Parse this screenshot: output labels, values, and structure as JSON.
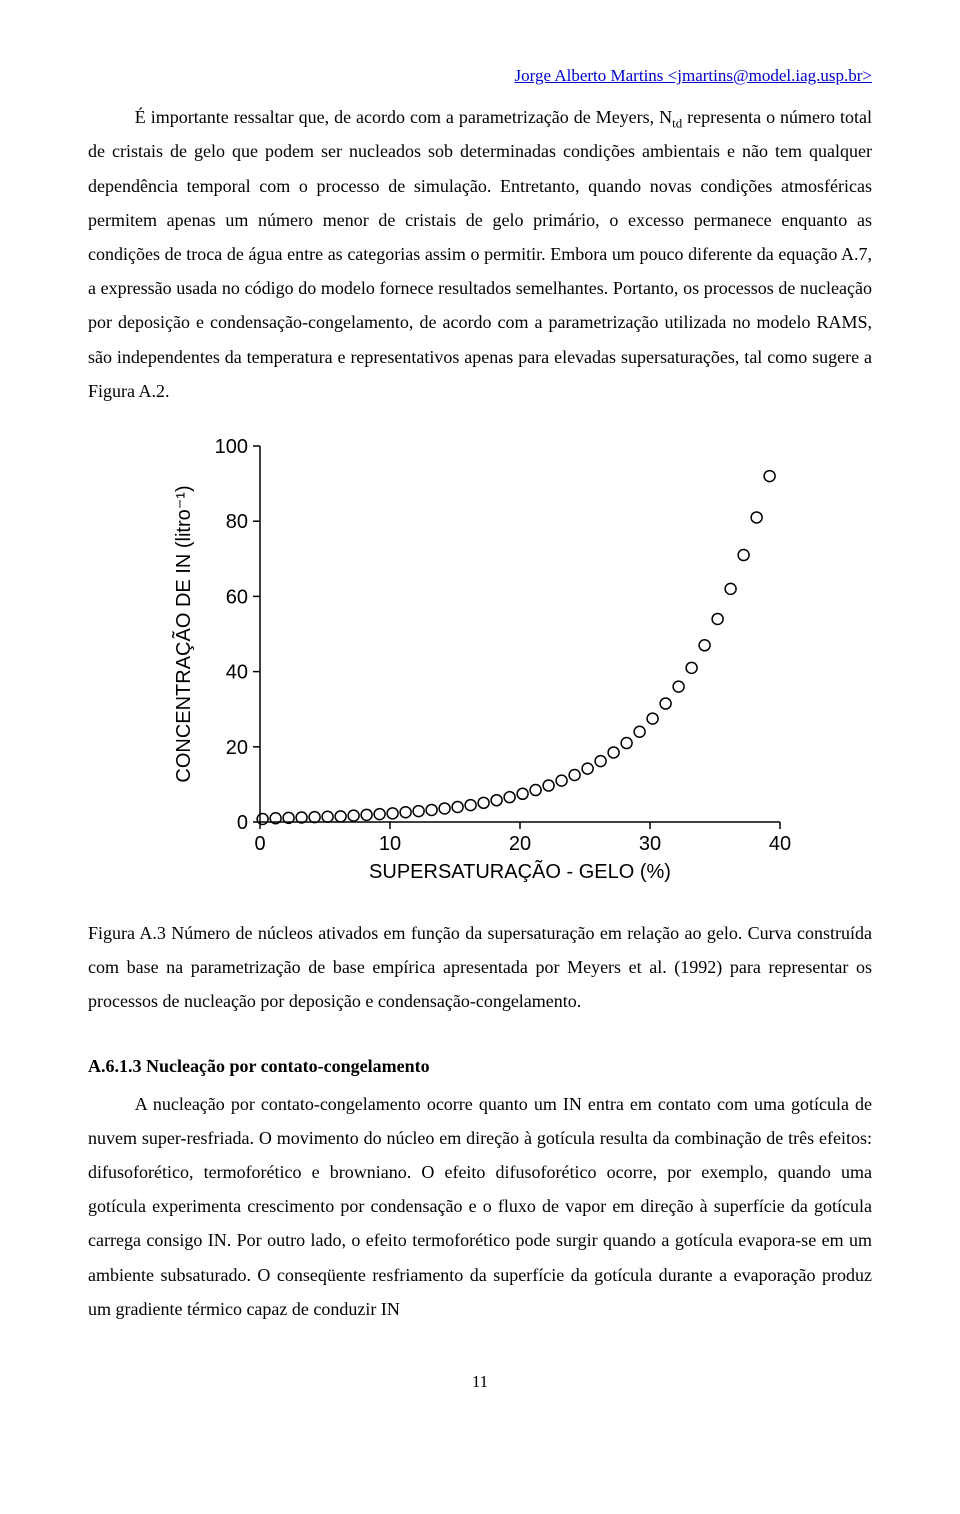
{
  "header": {
    "link_text": "Jorge Alberto Martins <jmartins@model.iag.usp.br>",
    "link_color": "#0000cc"
  },
  "paragraph1_a": "É importante ressaltar que, de acordo com a parametrização de Meyers, N",
  "paragraph1_sub": "td",
  "paragraph1_b": " representa o número total de cristais de gelo que podem ser nucleados sob determinadas condições ambientais e não tem qualquer dependência temporal com o processo de simulação. Entretanto, quando novas condições atmosféricas permitem apenas um número menor de cristais de gelo primário, o excesso permanece enquanto as condições de troca de água entre as categorias assim o permitir. Embora um pouco diferente da equação A.7, a expressão usada no código do modelo fornece resultados semelhantes. Portanto, os processos de nucleação por deposição e condensação-congelamento, de acordo com a parametrização utilizada no modelo RAMS, são independentes da temperatura e representativos apenas para elevadas supersaturações, tal como sugere a Figura A.2.",
  "chart": {
    "type": "scatter",
    "x_label": "SUPERSATURAÇÃO - GELO (%)",
    "y_label": "CONCENTRAÇÃO DE IN (litro⁻¹)",
    "xlim": [
      0,
      40
    ],
    "ylim": [
      0,
      100
    ],
    "xtick_step": 10,
    "ytick_step": 20,
    "background_color": "#ffffff",
    "axis_color": "#000000",
    "axis_width": 1.5,
    "marker_style": "circle-open",
    "marker_radius": 5.5,
    "marker_stroke": "#000000",
    "marker_stroke_width": 1.5,
    "marker_fill": "none",
    "tick_fontsize": 20,
    "label_fontsize": 20,
    "font_family": "Arial",
    "points": [
      {
        "x": 0.2,
        "y": 0.8
      },
      {
        "x": 1.2,
        "y": 1.0
      },
      {
        "x": 2.2,
        "y": 1.1
      },
      {
        "x": 3.2,
        "y": 1.2
      },
      {
        "x": 4.2,
        "y": 1.3
      },
      {
        "x": 5.2,
        "y": 1.4
      },
      {
        "x": 6.2,
        "y": 1.5
      },
      {
        "x": 7.2,
        "y": 1.7
      },
      {
        "x": 8.2,
        "y": 1.9
      },
      {
        "x": 9.2,
        "y": 2.1
      },
      {
        "x": 10.2,
        "y": 2.3
      },
      {
        "x": 11.2,
        "y": 2.6
      },
      {
        "x": 12.2,
        "y": 2.9
      },
      {
        "x": 13.2,
        "y": 3.2
      },
      {
        "x": 14.2,
        "y": 3.6
      },
      {
        "x": 15.2,
        "y": 4.0
      },
      {
        "x": 16.2,
        "y": 4.5
      },
      {
        "x": 17.2,
        "y": 5.1
      },
      {
        "x": 18.2,
        "y": 5.8
      },
      {
        "x": 19.2,
        "y": 6.6
      },
      {
        "x": 20.2,
        "y": 7.5
      },
      {
        "x": 21.2,
        "y": 8.5
      },
      {
        "x": 22.2,
        "y": 9.7
      },
      {
        "x": 23.2,
        "y": 11.0
      },
      {
        "x": 24.2,
        "y": 12.5
      },
      {
        "x": 25.2,
        "y": 14.2
      },
      {
        "x": 26.2,
        "y": 16.2
      },
      {
        "x": 27.2,
        "y": 18.5
      },
      {
        "x": 28.2,
        "y": 21.0
      },
      {
        "x": 29.2,
        "y": 24.0
      },
      {
        "x": 30.2,
        "y": 27.5
      },
      {
        "x": 31.2,
        "y": 31.5
      },
      {
        "x": 32.2,
        "y": 36.0
      },
      {
        "x": 33.2,
        "y": 41.0
      },
      {
        "x": 34.2,
        "y": 47.0
      },
      {
        "x": 35.2,
        "y": 54.0
      },
      {
        "x": 36.2,
        "y": 62.0
      },
      {
        "x": 37.2,
        "y": 71.0
      },
      {
        "x": 38.2,
        "y": 81.0
      },
      {
        "x": 39.2,
        "y": 92.0
      }
    ]
  },
  "caption": "Figura A.3 Número de núcleos ativados em função da supersaturação em relação ao gelo. Curva construída com base na parametrização de base empírica apresentada por Meyers et al. (1992) para representar os processos de nucleação por deposição e condensação-congelamento.",
  "section_heading": "A.6.1.3 Nucleação por contato-congelamento",
  "paragraph2": "A nucleação por contato-congelamento ocorre quanto um IN entra em contato com uma gotícula de nuvem super-resfriada. O movimento do núcleo em direção à gotícula resulta da combinação de três efeitos: difusoforético, termoforético e browniano. O efeito difusoforético ocorre, por exemplo, quando uma gotícula experimenta crescimento por condensação e o fluxo de vapor em direção à superfície da gotícula carrega consigo IN. Por outro lado, o efeito termoforético pode surgir quando a gotícula evapora-se em um ambiente subsaturado. O conseqüente resfriamento da superfície da gotícula durante a evaporação produz um gradiente térmico capaz de conduzir IN",
  "page_number": "11"
}
